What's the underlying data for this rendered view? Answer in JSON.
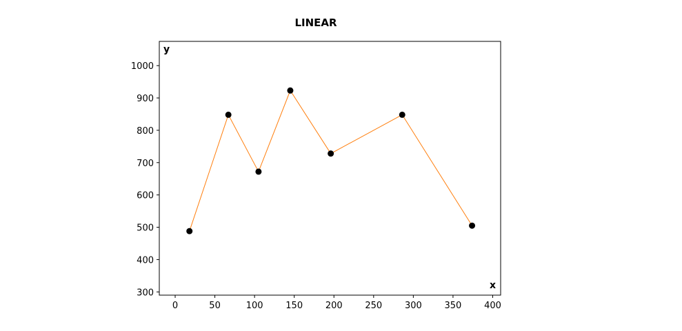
{
  "chart_data": {
    "type": "line",
    "title": "LINEAR",
    "xlabel": "x",
    "ylabel": "y",
    "xlim": [
      -20,
      410
    ],
    "ylim": [
      290,
      1075
    ],
    "x_ticks": [
      0,
      50,
      100,
      150,
      200,
      250,
      300,
      350,
      400
    ],
    "y_ticks": [
      300,
      400,
      500,
      600,
      700,
      800,
      900,
      1000
    ],
    "grid": false,
    "series": [
      {
        "x": [
          18,
          67,
          105,
          145,
          196,
          286,
          374
        ],
        "y": [
          488,
          848,
          672,
          923,
          728,
          848,
          505
        ],
        "line_color": "#ff7f0e",
        "marker_color": "#000000"
      }
    ]
  }
}
